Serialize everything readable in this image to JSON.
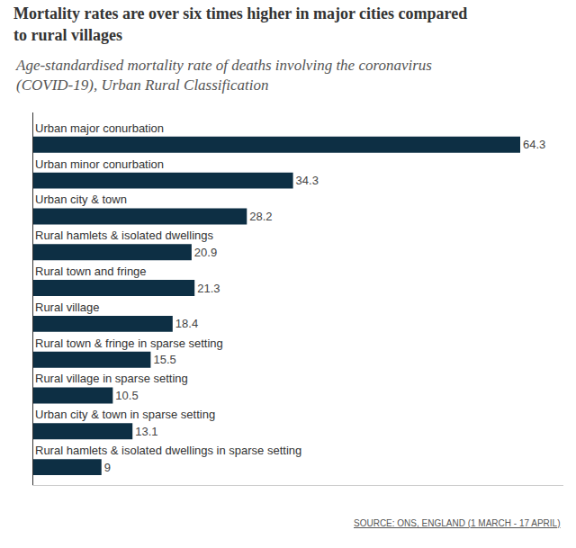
{
  "chart_data": {
    "type": "bar",
    "orientation": "horizontal",
    "title": "Mortality rates are over six times higher in major cities compared to rural villages",
    "subtitle": "Age-standardised mortality rate of deaths involving the coronavirus (COVID-19), Urban Rural Classification",
    "source": "SOURCE: ONS, ENGLAND (1 MARCH - 17 APRIL)",
    "categories": [
      "Urban major conurbation",
      "Urban minor conurbation",
      "Urban city & town",
      "Rural hamlets & isolated dwellings",
      "Rural town and fringe",
      "Rural village",
      "Rural town & fringe in sparse setting",
      "Rural village in sparse setting",
      "Urban city & town in sparse setting",
      "Rural hamlets & isolated dwellings in sparse setting"
    ],
    "values": [
      64.3,
      34.3,
      28.2,
      20.9,
      21.3,
      18.4,
      15.5,
      10.5,
      13.1,
      9
    ],
    "color": "#0d2f44",
    "xlim": [
      0,
      70
    ],
    "data_labels": true,
    "tick_labels": false,
    "grid": false
  }
}
